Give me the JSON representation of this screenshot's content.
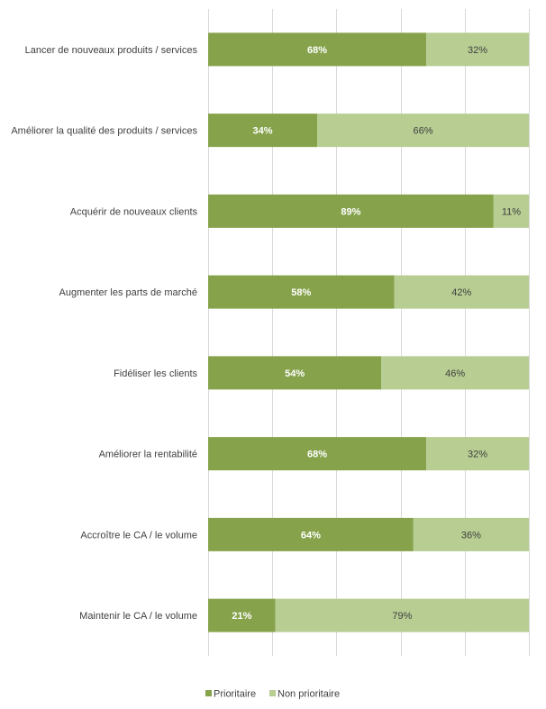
{
  "chart_data": {
    "type": "bar",
    "orientation": "horizontal",
    "stacked": true,
    "categories": [
      "Lancer de nouveaux produits / services",
      "Améliorer la qualité des produits / services",
      "Acquérir de nouveaux clients",
      "Augmenter les parts de marché",
      "Fidéliser les clients",
      "Améliorer la rentabilité",
      "Accroître le CA / le volume",
      "Maintenir le CA / le volume"
    ],
    "series": [
      {
        "name": "Prioritaire",
        "color": "#86a34c",
        "values": [
          68,
          34,
          89,
          58,
          54,
          68,
          64,
          21
        ],
        "labels": [
          "68%",
          "34%",
          "89%",
          "58%",
          "54%",
          "68%",
          "64%",
          "21%"
        ]
      },
      {
        "name": "Non prioritaire",
        "color": "#b7cd92",
        "values": [
          32,
          66,
          11,
          42,
          46,
          32,
          36,
          79
        ],
        "labels": [
          "32%",
          "66%",
          "11%",
          "42%",
          "46%",
          "32%",
          "36%",
          "79%"
        ]
      }
    ],
    "xlim": [
      0,
      100
    ],
    "grid": true,
    "legend": "bottom-center"
  }
}
